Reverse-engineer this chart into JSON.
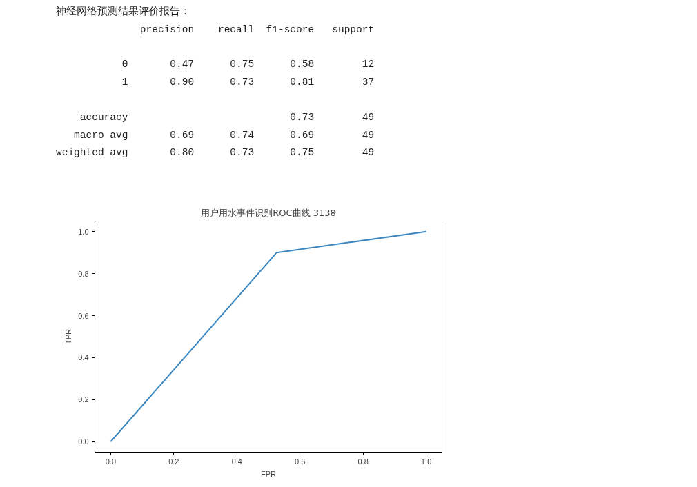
{
  "chart_data": {
    "type": "line",
    "title": "用户用水事件识别ROC曲线 3138",
    "xlabel": "FPR",
    "ylabel": "TPR",
    "x": [
      0,
      0.526,
      1
    ],
    "series": [
      {
        "color": "#3a87c2",
        "values": [
          0,
          0.9,
          1
        ]
      }
    ],
    "xlim": [
      -0.05,
      1.05
    ],
    "ylim": [
      -0.05,
      1.05
    ],
    "xticks": [
      {
        "value": 0,
        "label": "0.0"
      },
      0.2,
      0.4,
      0.6,
      0.8,
      {
        "value": 1,
        "label": "1.0"
      }
    ],
    "yticks": [
      {
        "value": 0,
        "label": "0.0"
      },
      0.2,
      0.4,
      0.6,
      0.8,
      {
        "value": 1,
        "label": "1.0"
      }
    ],
    "grid": false,
    "marker": "none",
    "line_style": "solid",
    "annotations": [
      "神经网络预测结果评价报告：",
      "              precision    recall  f1-score   support",
      "           0       0.47      0.75      0.58        12",
      "           1       0.90      0.73      0.81        37",
      "    accuracy                           0.73        49",
      "   macro avg       0.69      0.74      0.69        49",
      "weighted avg       0.80      0.73      0.75        49"
    ]
  }
}
